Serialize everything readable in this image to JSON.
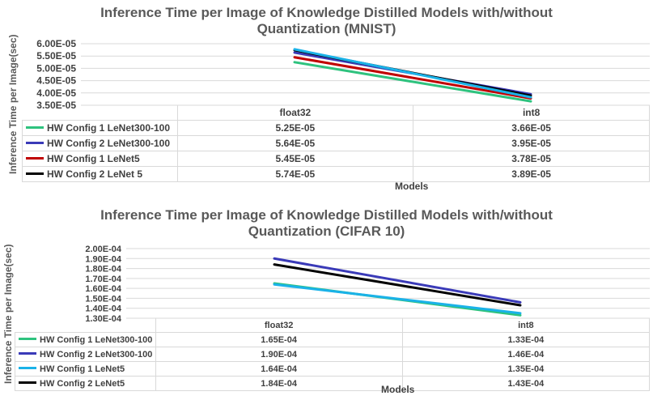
{
  "chart_data": [
    {
      "type": "line",
      "title_line1": "Inference Time per Image of Knowledge Distilled Models with/without",
      "title_line2": "Quantization (MNIST)",
      "xlabel": "Models",
      "ylabel": "Inference Time per Image(sec)",
      "categories": [
        "float32",
        "int8"
      ],
      "ylim": [
        3.5e-05,
        6e-05
      ],
      "yticks": [
        "6.00E-05",
        "5.50E-05",
        "5.00E-05",
        "4.50E-05",
        "4.00E-05",
        "3.50E-05"
      ],
      "ytick_values": [
        6e-05,
        5.5e-05,
        5e-05,
        4.5e-05,
        4e-05,
        3.5e-05
      ],
      "series": [
        {
          "name": "HW Config 1 LeNet300-100",
          "color": "#2ec27e",
          "values": [
            5.25e-05,
            3.66e-05
          ],
          "labels": [
            "5.25E-05",
            "3.66E-05"
          ]
        },
        {
          "name": "HW Config 2 LeNet300-100",
          "color": "#3a3ab8",
          "values": [
            5.64e-05,
            3.95e-05
          ],
          "labels": [
            "5.64E-05",
            "3.95E-05"
          ]
        },
        {
          "name": "HW Config 1 LeNet5",
          "color": "#c00000",
          "values": [
            5.45e-05,
            3.78e-05
          ],
          "labels": [
            "5.45E-05",
            "3.78E-05"
          ]
        },
        {
          "name": "HW Config 2 LeNet 5",
          "color": "#000000",
          "values": [
            5.74e-05,
            3.89e-05
          ],
          "labels": [
            "5.74E-05",
            "3.89E-05"
          ]
        }
      ],
      "highlight_line_color": "#1ab2e8"
    },
    {
      "type": "line",
      "title_line1": "Inference Time per Image of Knowledge Distilled Models with/without",
      "title_line2": "Quantization (CIFAR 10)",
      "xlabel": "Models",
      "ylabel": "Inference Time per Image(sec)",
      "categories": [
        "float32",
        "int8"
      ],
      "ylim": [
        0.00013,
        0.0002
      ],
      "yticks": [
        "2.00E-04",
        "1.90E-04",
        "1.80E-04",
        "1.70E-04",
        "1.60E-04",
        "1.50E-04",
        "1.40E-04",
        "1.30E-04"
      ],
      "ytick_values": [
        0.0002,
        0.00019,
        0.00018,
        0.00017,
        0.00016,
        0.00015,
        0.00014,
        0.00013
      ],
      "series": [
        {
          "name": "HW Config 1 LeNet300-100",
          "color": "#2ec27e",
          "values": [
            0.000165,
            0.000133
          ],
          "labels": [
            "1.65E-04",
            "1.33E-04"
          ]
        },
        {
          "name": "HW Config 2 LeNet300-100",
          "color": "#3a3ab8",
          "values": [
            0.00019,
            0.000146
          ],
          "labels": [
            "1.90E-04",
            "1.46E-04"
          ]
        },
        {
          "name": "HW Config 1 LeNet5",
          "color": "#1ab2e8",
          "values": [
            0.000164,
            0.000135
          ],
          "labels": [
            "1.64E-04",
            "1.35E-04"
          ]
        },
        {
          "name": "HW Config 2 LeNet5",
          "color": "#000000",
          "values": [
            0.000184,
            0.000143
          ],
          "labels": [
            "1.84E-04",
            "1.43E-04"
          ]
        }
      ]
    }
  ]
}
